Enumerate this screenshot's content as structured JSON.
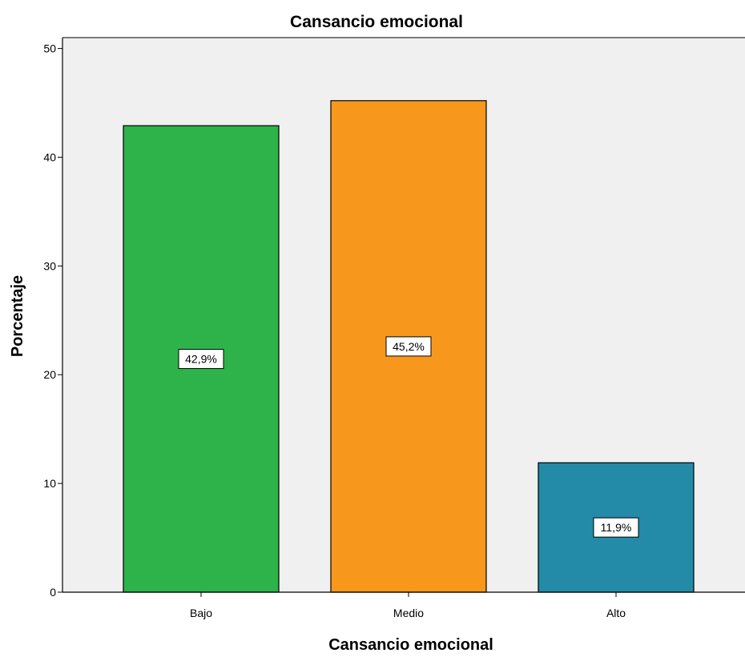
{
  "chart_data": {
    "type": "bar",
    "title": "Cansancio emocional",
    "xlabel": "Cansancio emocional",
    "ylabel": "Porcentaje",
    "categories": [
      "Bajo",
      "Medio",
      "Alto"
    ],
    "values": [
      42.9,
      45.2,
      11.9
    ],
    "data_labels": [
      "42,9%",
      "45,2%",
      "11,9%"
    ],
    "colors": [
      "#2db34a",
      "#f7981d",
      "#238ba8"
    ],
    "ylim": [
      0,
      51
    ],
    "yticks": [
      0,
      10,
      20,
      30,
      40,
      50
    ],
    "plot_background": "#f0f0f0",
    "grid": false,
    "legend": "none"
  }
}
